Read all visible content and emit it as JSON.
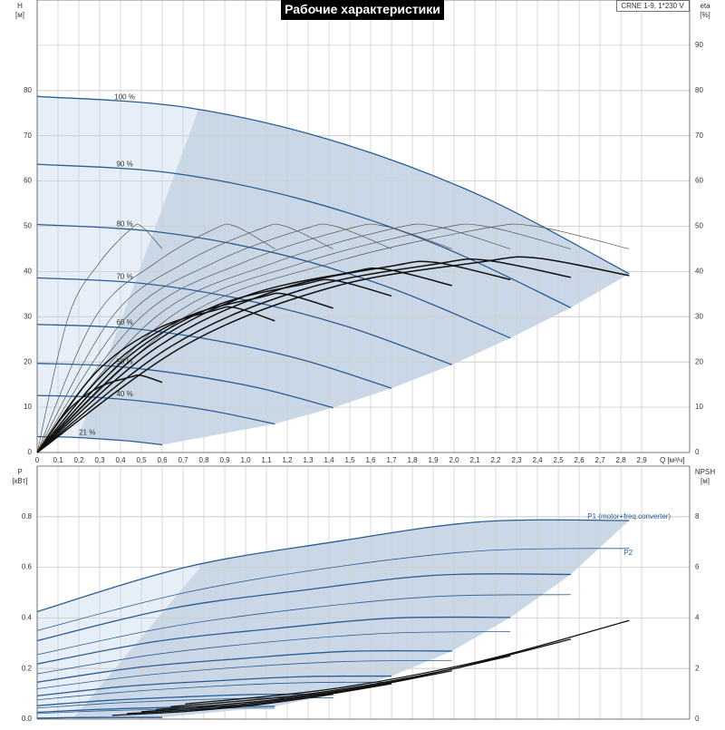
{
  "chart_data": [
    {
      "type": "line",
      "title": "Рабочие характеристики",
      "model": "CRNE 1-9, 1*230 V",
      "xlabel": "Q [м³/ч]",
      "ylabel": "H",
      "yunit": "[м]",
      "y2label": "eta",
      "y2unit": "[%]",
      "xlim": [
        0,
        3.13
      ],
      "ylim": [
        0,
        100
      ],
      "y2lim": [
        0,
        100
      ],
      "grid": true,
      "xticks": [
        0,
        {
          "value": 0.1,
          "label": "0,1"
        },
        {
          "value": 0.2,
          "label": "0,2"
        },
        {
          "value": 0.3,
          "label": "0,3"
        },
        {
          "value": 0.4,
          "label": "0,4"
        },
        {
          "value": 0.5,
          "label": "0,5"
        },
        {
          "value": 0.6,
          "label": "0,6"
        },
        {
          "value": 0.7,
          "label": "0,7"
        },
        {
          "value": 0.8,
          "label": "0,8"
        },
        {
          "value": 0.9,
          "label": "0,9"
        },
        {
          "value": 1.0,
          "label": "1,0"
        },
        {
          "value": 1.1,
          "label": "1,1"
        },
        {
          "value": 1.2,
          "label": "1,2"
        },
        {
          "value": 1.3,
          "label": "1,3"
        },
        {
          "value": 1.4,
          "label": "1,4"
        },
        {
          "value": 1.5,
          "label": "1,5"
        },
        {
          "value": 1.6,
          "label": "1,6"
        },
        {
          "value": 1.7,
          "label": "1,7"
        },
        {
          "value": 1.8,
          "label": "1,8"
        },
        {
          "value": 1.9,
          "label": "1,9"
        },
        {
          "value": 2.0,
          "label": "2,0"
        },
        {
          "value": 2.1,
          "label": "2,1"
        },
        {
          "value": 2.2,
          "label": "2,2"
        },
        {
          "value": 2.3,
          "label": "2,3"
        },
        {
          "value": 2.4,
          "label": "2,4"
        },
        {
          "value": 2.5,
          "label": "2,5"
        },
        {
          "value": 2.6,
          "label": "2,6"
        },
        {
          "value": 2.7,
          "label": "2,7"
        },
        {
          "value": 2.8,
          "label": "2,8"
        },
        {
          "value": 2.9,
          "label": "2,9"
        }
      ],
      "yticks": [
        0,
        10,
        20,
        30,
        40,
        50,
        60,
        70,
        80
      ],
      "y2ticks": [
        0,
        10,
        20,
        30,
        40,
        50,
        60,
        70,
        80,
        90
      ],
      "series": [
        {
          "name": "100 %",
          "color": "#2b5d94",
          "width": 1.3,
          "x": [
            0,
            0.71,
            1.42,
            2.13,
            2.84
          ],
          "values": [
            78.7,
            76.3,
            68.9,
            56.7,
            39.5
          ]
        },
        {
          "name": "90 %",
          "color": "#2b5d94",
          "width": 1.3,
          "x": [
            0,
            0.64,
            1.28,
            1.92,
            2.56
          ],
          "values": [
            63.7,
            61.8,
            55.8,
            45.9,
            32.0
          ]
        },
        {
          "name": "80 %",
          "color": "#2b5d94",
          "width": 1.3,
          "x": [
            0,
            0.57,
            1.14,
            1.7,
            2.27
          ],
          "values": [
            50.4,
            48.8,
            44.1,
            36.3,
            25.3
          ]
        },
        {
          "name": "70 %",
          "color": "#2b5d94",
          "width": 1.3,
          "x": [
            0,
            0.5,
            0.99,
            1.49,
            1.99
          ],
          "values": [
            38.6,
            37.4,
            33.8,
            27.8,
            19.4
          ]
        },
        {
          "name": "60 %",
          "color": "#2b5d94",
          "width": 1.3,
          "x": [
            0,
            0.43,
            0.85,
            1.28,
            1.7
          ],
          "values": [
            28.3,
            27.5,
            24.8,
            20.4,
            14.2
          ]
        },
        {
          "name": "50 %",
          "color": "#2b5d94",
          "width": 1.3,
          "x": [
            0,
            0.36,
            0.71,
            1.07,
            1.42
          ],
          "values": [
            19.7,
            19.1,
            17.2,
            14.2,
            9.9
          ]
        },
        {
          "name": "40 %",
          "color": "#2b5d94",
          "width": 1.3,
          "x": [
            0,
            0.28,
            0.57,
            0.85,
            1.14
          ],
          "values": [
            12.6,
            12.2,
            11.0,
            9.1,
            6.3
          ]
        },
        {
          "name": "21 %",
          "color": "#2b5d94",
          "width": 1.3,
          "x": [
            0,
            0.15,
            0.3,
            0.45,
            0.6
          ],
          "values": [
            3.5,
            3.4,
            3.0,
            2.5,
            1.7
          ]
        },
        {
          "color": "#555555",
          "width": 0.7,
          "axis": "y2",
          "x": [
            0,
            0.71,
            1.42,
            2.13,
            2.39,
            2.84
          ],
          "values": [
            0,
            30,
            42,
            49.4,
            50,
            45
          ]
        },
        {
          "color": "#555555",
          "width": 0.7,
          "axis": "y2",
          "x": [
            0,
            0.64,
            1.28,
            1.92,
            2.15,
            2.56
          ],
          "values": [
            0,
            30,
            42,
            49.4,
            50,
            45
          ]
        },
        {
          "color": "#555555",
          "width": 0.7,
          "axis": "y2",
          "x": [
            0,
            0.57,
            1.14,
            1.7,
            1.91,
            2.27
          ],
          "values": [
            0,
            30,
            42,
            49.4,
            50,
            45
          ]
        },
        {
          "color": "#555555",
          "width": 0.7,
          "axis": "y2",
          "x": [
            0,
            0.5,
            0.99,
            1.49,
            1.67,
            1.99
          ],
          "values": [
            0,
            30,
            42,
            49.4,
            50,
            45
          ]
        },
        {
          "color": "#555555",
          "width": 0.7,
          "axis": "y2",
          "x": [
            0,
            0.43,
            0.85,
            1.28,
            1.43,
            1.7
          ],
          "values": [
            0,
            30,
            42,
            49.4,
            50,
            45
          ]
        },
        {
          "color": "#555555",
          "width": 0.7,
          "axis": "y2",
          "x": [
            0,
            0.36,
            0.71,
            1.07,
            1.19,
            1.42
          ],
          "values": [
            0,
            30,
            42,
            49.4,
            50,
            45
          ]
        },
        {
          "color": "#555555",
          "width": 0.7,
          "axis": "y2",
          "x": [
            0,
            0.28,
            0.57,
            0.85,
            0.95,
            1.14
          ],
          "values": [
            0,
            30,
            42,
            49.4,
            50,
            45
          ]
        },
        {
          "color": "#555555",
          "width": 0.7,
          "axis": "y2",
          "x": [
            0,
            0.15,
            0.3,
            0.45,
            0.5,
            0.6
          ],
          "values": [
            0,
            30,
            42,
            49.4,
            50,
            45
          ]
        },
        {
          "color": "#111111",
          "width": 1.5,
          "axis": "y2",
          "x": [
            0,
            0.71,
            1.42,
            2.13,
            2.39,
            2.84
          ],
          "values": [
            0,
            23.7,
            36.6,
            42.1,
            43,
            39.1
          ]
        },
        {
          "color": "#111111",
          "width": 1.5,
          "axis": "y2",
          "x": [
            0,
            0.64,
            1.28,
            1.92,
            2.15,
            2.56
          ],
          "values": [
            0,
            23.4,
            36.1,
            41.7,
            42.5,
            38.7
          ]
        },
        {
          "color": "#111111",
          "width": 1.5,
          "axis": "y2",
          "x": [
            0,
            0.57,
            1.14,
            1.7,
            1.91,
            2.27
          ],
          "values": [
            0,
            23.1,
            35.7,
            41.2,
            42,
            38.2
          ]
        },
        {
          "color": "#111111",
          "width": 1.5,
          "axis": "y2",
          "x": [
            0,
            0.5,
            0.99,
            1.49,
            1.67,
            1.99
          ],
          "values": [
            0,
            22.3,
            34.4,
            39.7,
            40.5,
            36.9
          ]
        },
        {
          "color": "#111111",
          "width": 1.5,
          "axis": "y2",
          "x": [
            0,
            0.43,
            0.85,
            1.28,
            1.43,
            1.7
          ],
          "values": [
            0,
            20.9,
            32.3,
            37.2,
            38,
            34.6
          ]
        },
        {
          "color": "#111111",
          "width": 1.5,
          "axis": "y2",
          "x": [
            0,
            0.36,
            0.71,
            1.07,
            1.19,
            1.42
          ],
          "values": [
            0,
            19.3,
            29.8,
            34.3,
            35,
            31.9
          ]
        },
        {
          "color": "#111111",
          "width": 1.5,
          "axis": "y2",
          "x": [
            0,
            0.28,
            0.57,
            0.85,
            0.95,
            1.14
          ],
          "values": [
            0,
            17.6,
            27.2,
            31.4,
            32,
            29.1
          ]
        },
        {
          "color": "#111111",
          "width": 1.5,
          "axis": "y2",
          "x": [
            0,
            0.15,
            0.3,
            0.45,
            0.5,
            0.6
          ],
          "values": [
            0,
            9.4,
            14.5,
            16.7,
            17,
            15.5
          ]
        }
      ]
    },
    {
      "type": "line",
      "ylabel": "P",
      "yunit": "[кВт]",
      "y2label": "NPSH",
      "y2unit": "[м]",
      "xlim": [
        0,
        3.13
      ],
      "ylim": [
        0,
        1
      ],
      "y2lim": [
        0,
        10
      ],
      "grid": true,
      "xticks": [
        0,
        0.1,
        0.2,
        0.3,
        0.4,
        0.5,
        0.6,
        0.7,
        0.8,
        0.9,
        1.0,
        1.1,
        1.2,
        1.3,
        1.4,
        1.5,
        1.6,
        1.7,
        1.8,
        1.9,
        2.0,
        2.1,
        2.2,
        2.3,
        2.4,
        2.5,
        2.6,
        2.7,
        2.8,
        2.9
      ],
      "yticks": [
        {
          "value": 0,
          "label": "0.0"
        },
        0.2,
        0.4,
        0.6,
        0.8
      ],
      "y2ticks": [
        0,
        2,
        4,
        6,
        8
      ],
      "series": [
        {
          "name": "P1 (motor+freq.converter)",
          "color": "#2b5d94",
          "width": 1.3,
          "x": [
            0,
            0.71,
            1.42,
            2.13,
            2.84
          ],
          "values": [
            0.425,
            0.6,
            0.7,
            0.78,
            0.785
          ]
        },
        {
          "color": "#2b5d94",
          "width": 1.3,
          "x": [
            0,
            0.64,
            1.28,
            1.92,
            2.56
          ],
          "values": [
            0.31,
            0.437,
            0.51,
            0.569,
            0.572
          ]
        },
        {
          "color": "#2b5d94",
          "width": 1.3,
          "x": [
            0,
            0.57,
            1.14,
            1.7,
            2.27
          ],
          "values": [
            0.218,
            0.307,
            0.358,
            0.399,
            0.402
          ]
        },
        {
          "color": "#2b5d94",
          "width": 1.3,
          "x": [
            0,
            0.5,
            0.99,
            1.49,
            1.99
          ],
          "values": [
            0.146,
            0.206,
            0.24,
            0.268,
            0.269
          ]
        },
        {
          "color": "#2b5d94",
          "width": 1.3,
          "x": [
            0,
            0.43,
            0.85,
            1.28,
            1.7
          ],
          "values": [
            0.092,
            0.13,
            0.151,
            0.168,
            0.17
          ]
        },
        {
          "color": "#2b5d94",
          "width": 1.3,
          "x": [
            0,
            0.36,
            0.71,
            1.07,
            1.42
          ],
          "values": [
            0.053,
            0.075,
            0.088,
            0.098,
            0.098
          ]
        },
        {
          "color": "#2b5d94",
          "width": 1.3,
          "x": [
            0,
            0.28,
            0.57,
            0.85,
            1.14
          ],
          "values": [
            0.027,
            0.038,
            0.045,
            0.05,
            0.05
          ]
        },
        {
          "color": "#2b5d94",
          "width": 1.3,
          "x": [
            0,
            0.15,
            0.3,
            0.45,
            0.6
          ],
          "values": [
            0.004,
            0.006,
            0.007,
            0.007,
            0.007
          ]
        },
        {
          "name": "P2",
          "color": "#2b5d94",
          "width": 0.8,
          "x": [
            0,
            0.71,
            1.42,
            2.13,
            2.84
          ],
          "values": [
            0.35,
            0.5,
            0.6,
            0.665,
            0.675
          ]
        },
        {
          "color": "#2b5d94",
          "width": 0.8,
          "x": [
            0,
            0.64,
            1.28,
            1.92,
            2.56
          ],
          "values": [
            0.255,
            0.365,
            0.437,
            0.485,
            0.492
          ]
        },
        {
          "color": "#2b5d94",
          "width": 0.8,
          "x": [
            0,
            0.57,
            1.14,
            1.7,
            2.27
          ],
          "values": [
            0.179,
            0.256,
            0.307,
            0.34,
            0.346
          ]
        },
        {
          "color": "#2b5d94",
          "width": 0.8,
          "x": [
            0,
            0.5,
            0.99,
            1.49,
            1.99
          ],
          "values": [
            0.12,
            0.172,
            0.206,
            0.228,
            0.232
          ]
        },
        {
          "color": "#2b5d94",
          "width": 0.8,
          "x": [
            0,
            0.43,
            0.85,
            1.28,
            1.7
          ],
          "values": [
            0.076,
            0.108,
            0.13,
            0.144,
            0.146
          ]
        },
        {
          "color": "#2b5d94",
          "width": 0.8,
          "x": [
            0,
            0.36,
            0.71,
            1.07,
            1.42
          ],
          "values": [
            0.044,
            0.063,
            0.075,
            0.083,
            0.084
          ]
        },
        {
          "color": "#2b5d94",
          "width": 0.8,
          "x": [
            0,
            0.28,
            0.57,
            0.85,
            1.14
          ],
          "values": [
            0.022,
            0.032,
            0.038,
            0.043,
            0.043
          ]
        },
        {
          "color": "#2b5d94",
          "width": 0.8,
          "x": [
            0,
            0.15,
            0.3,
            0.45,
            0.6
          ],
          "values": [
            0.003,
            0.005,
            0.006,
            0.006,
            0.006
          ]
        },
        {
          "color": "#111111",
          "width": 1.3,
          "axis": "y2",
          "x": [
            0.71,
            1.42,
            2.13,
            2.84
          ],
          "values": [
            0.6,
            1.2,
            2.3,
            3.9
          ]
        },
        {
          "color": "#111111",
          "width": 1.3,
          "axis": "y2",
          "x": [
            0.64,
            1.28,
            1.92,
            2.56
          ],
          "values": [
            0.49,
            0.97,
            1.86,
            3.16
          ]
        },
        {
          "color": "#111111",
          "width": 1.3,
          "axis": "y2",
          "x": [
            0.57,
            1.14,
            1.7,
            2.27
          ],
          "values": [
            0.38,
            0.77,
            1.47,
            2.5
          ]
        },
        {
          "color": "#111111",
          "width": 1.3,
          "axis": "y2",
          "x": [
            0.5,
            0.99,
            1.49,
            1.99
          ],
          "values": [
            0.29,
            0.59,
            1.13,
            1.91
          ]
        },
        {
          "color": "#111111",
          "width": 1.3,
          "axis": "y2",
          "x": [
            0.43,
            0.85,
            1.28,
            1.7
          ],
          "values": [
            0.22,
            0.43,
            0.83,
            1.4
          ]
        },
        {
          "color": "#111111",
          "width": 1.3,
          "axis": "y2",
          "x": [
            0.36,
            0.71,
            1.07,
            1.42
          ],
          "values": [
            0.15,
            0.3,
            0.58,
            0.98
          ]
        }
      ]
    }
  ]
}
